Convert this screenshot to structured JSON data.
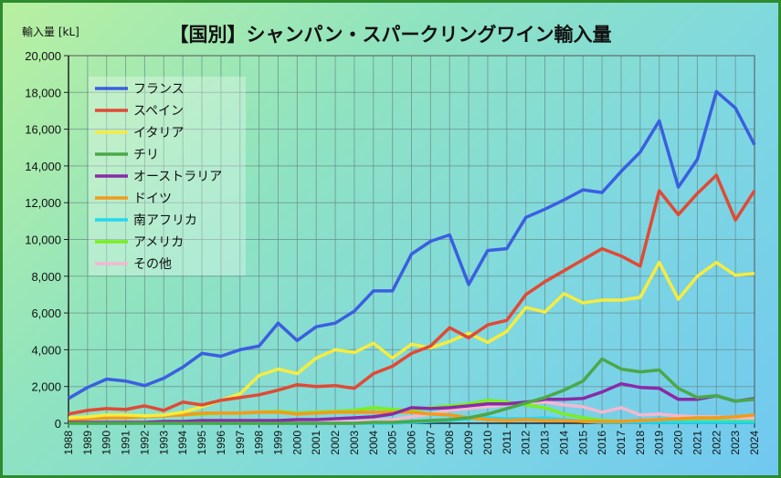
{
  "chart_data": {
    "type": "line",
    "title": "【国別】シャンパン・スパークリングワイン輸入量",
    "ylabel": "輸入量 [kL]",
    "xlabel": "",
    "ylim": [
      0,
      20000
    ],
    "yticks": [
      "0",
      "2,000",
      "4,000",
      "6,000",
      "8,000",
      "10,000",
      "12,000",
      "14,000",
      "16,000",
      "18,000",
      "20,000"
    ],
    "grid": true,
    "legend": "top-left",
    "x": [
      1988,
      1989,
      1990,
      1991,
      1992,
      1993,
      1994,
      1995,
      1996,
      1997,
      1998,
      1999,
      2000,
      2001,
      2002,
      2003,
      2004,
      2005,
      2006,
      2007,
      2008,
      2009,
      2010,
      2011,
      2012,
      2013,
      2014,
      2015,
      2016,
      2017,
      2018,
      2019,
      2020,
      2021,
      2022,
      2023,
      2024
    ],
    "series": [
      {
        "name": "フランス",
        "color": "#3a5fe0",
        "values": [
          1350,
          1950,
          2400,
          2300,
          2050,
          2450,
          3050,
          3800,
          3650,
          4000,
          4200,
          5450,
          4500,
          5250,
          5450,
          6100,
          7200,
          7200,
          9200,
          9900,
          10250,
          7550,
          9400,
          9500,
          11200,
          11650,
          12150,
          12700,
          12550,
          13700,
          14750,
          16450,
          12850,
          14350,
          18050,
          17150,
          15150
        ]
      },
      {
        "name": "スペイン",
        "color": "#e04a35",
        "values": [
          500,
          700,
          800,
          750,
          950,
          700,
          1150,
          1000,
          1250,
          1400,
          1550,
          1800,
          2100,
          2000,
          2050,
          1900,
          2700,
          3100,
          3800,
          4200,
          5200,
          4650,
          5350,
          5600,
          7000,
          7700,
          8300,
          8900,
          9500,
          9100,
          8550,
          12650,
          11350,
          12500,
          13500,
          11050,
          12650
        ]
      },
      {
        "name": "イタリア",
        "color": "#f5ec40",
        "values": [
          300,
          350,
          450,
          450,
          400,
          450,
          600,
          900,
          1250,
          1600,
          2600,
          2950,
          2700,
          3550,
          4000,
          3850,
          4350,
          3550,
          4300,
          4100,
          4450,
          4900,
          4400,
          5000,
          6300,
          6050,
          7050,
          6550,
          6700,
          6700,
          6850,
          8750,
          6750,
          8000,
          8750,
          8050,
          8150
        ]
      },
      {
        "name": "チリ",
        "color": "#4aa84a",
        "values": [
          0,
          0,
          0,
          0,
          0,
          0,
          0,
          0,
          0,
          0,
          0,
          0,
          0,
          0,
          0,
          0,
          50,
          50,
          100,
          150,
          200,
          300,
          500,
          800,
          1100,
          1400,
          1800,
          2300,
          3500,
          2950,
          2800,
          2900,
          1900,
          1400,
          1500,
          1200,
          1300
        ]
      },
      {
        "name": "オーストラリア",
        "color": "#8a2aa8",
        "values": [
          50,
          50,
          50,
          50,
          50,
          100,
          100,
          150,
          150,
          150,
          150,
          150,
          200,
          200,
          250,
          300,
          350,
          500,
          850,
          800,
          850,
          950,
          1050,
          1050,
          1150,
          1300,
          1300,
          1350,
          1700,
          2150,
          1950,
          1900,
          1300,
          1300,
          1500,
          1200,
          1350
        ]
      },
      {
        "name": "ドイツ",
        "color": "#f39a1a",
        "values": [
          150,
          250,
          300,
          300,
          350,
          400,
          450,
          550,
          550,
          550,
          600,
          600,
          500,
          550,
          600,
          600,
          600,
          600,
          600,
          500,
          450,
          300,
          200,
          150,
          200,
          150,
          150,
          100,
          100,
          100,
          150,
          200,
          250,
          300,
          300,
          350,
          450
        ]
      },
      {
        "name": "南アフリカ",
        "color": "#22d8f0",
        "values": [
          0,
          0,
          0,
          0,
          0,
          0,
          0,
          0,
          0,
          0,
          0,
          0,
          0,
          0,
          0,
          0,
          0,
          0,
          50,
          100,
          150,
          250,
          300,
          250,
          250,
          300,
          200,
          100,
          50,
          50,
          50,
          50,
          50,
          50,
          50,
          50,
          50
        ]
      },
      {
        "name": "アメリカ",
        "color": "#7aee20",
        "values": [
          200,
          250,
          300,
          350,
          350,
          400,
          450,
          500,
          550,
          550,
          600,
          650,
          550,
          600,
          650,
          700,
          850,
          750,
          700,
          850,
          950,
          1050,
          1250,
          1150,
          1000,
          850,
          500,
          300,
          150,
          100,
          100,
          100,
          100,
          100,
          100,
          100,
          100
        ]
      },
      {
        "name": "その他",
        "color": "#f4b8d0",
        "values": [
          50,
          50,
          50,
          50,
          50,
          50,
          50,
          50,
          50,
          50,
          50,
          50,
          50,
          100,
          100,
          100,
          150,
          200,
          350,
          500,
          700,
          800,
          900,
          1000,
          1100,
          1150,
          1000,
          900,
          600,
          850,
          450,
          500,
          400,
          350,
          350,
          300,
          300
        ]
      }
    ]
  }
}
